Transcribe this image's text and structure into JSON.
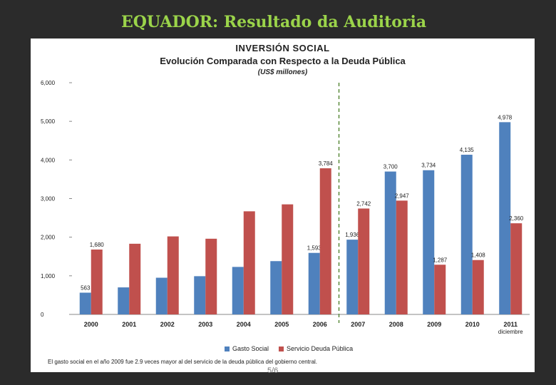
{
  "slide": {
    "title": "EQUADOR: Resultado da Auditoria"
  },
  "chart_data": {
    "type": "bar",
    "title": "INVERSIÓN SOCIAL",
    "subtitle": "Evolución Comparada con Respecto a la Deuda Pública",
    "units_label": "(US$ millones)",
    "categories": [
      "2000",
      "2001",
      "2002",
      "2003",
      "2004",
      "2005",
      "2006",
      "2007",
      "2008",
      "2009",
      "2010",
      "2011"
    ],
    "x_sublabel": {
      "category": "2011",
      "text": "diciembre"
    },
    "series": [
      {
        "name": "Gasto Social",
        "color": "#4f81bd",
        "values": [
          563,
          700,
          950,
          990,
          1230,
          1380,
          1593,
          1936,
          3700,
          3734,
          4135,
          4978
        ],
        "data_labels": [
          "563",
          "",
          "",
          "",
          "",
          "",
          "1,593",
          "1,936",
          "3,700",
          "3,734",
          "4,135",
          "4,978"
        ]
      },
      {
        "name": "Servicio Deuda Pública",
        "color": "#c0504d",
        "values": [
          1680,
          1830,
          2020,
          1960,
          2670,
          2850,
          3784,
          2742,
          2947,
          1287,
          1408,
          2360
        ],
        "data_labels": [
          "1,680",
          "",
          "",
          "",
          "",
          "",
          "3,784",
          "2,742",
          "2,947",
          "1,287",
          "1,408",
          "2,360"
        ]
      }
    ],
    "ylim": [
      0,
      6000
    ],
    "yticks": [
      "0",
      "1,000",
      "2,000",
      "3,000",
      "4,000",
      "5,000",
      "6,000"
    ],
    "grid": false,
    "legend_position": "bottom",
    "divider_after": "2006",
    "divider_color": "#5a8a3a",
    "footnote": "El gasto social en el año 2009 fue 2.9 veces mayor al del servicio de la deuda pública del gobierno central."
  },
  "slide_footer": "5/6"
}
